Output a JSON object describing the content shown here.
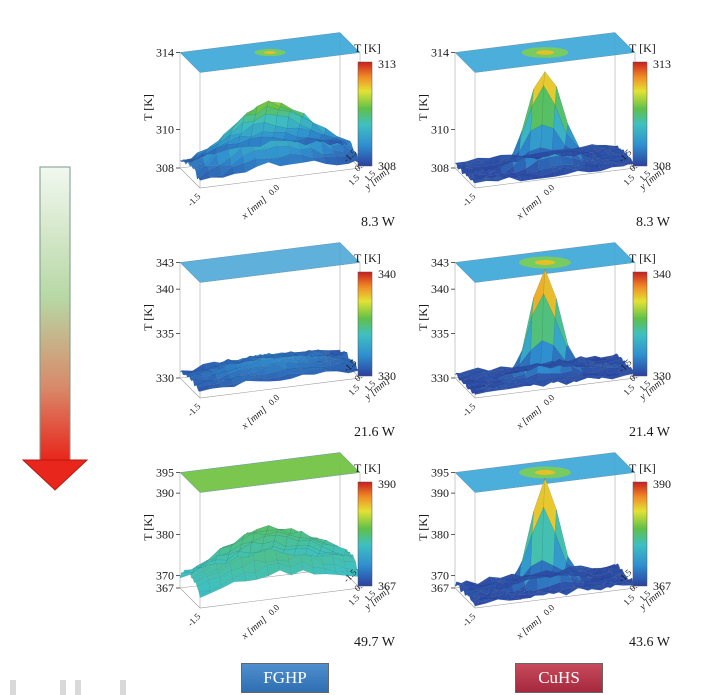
{
  "chart_data": [
    {
      "type": "surface",
      "id": "fghp-1",
      "zlabel": "T [K]",
      "xlabel": "x [mm]",
      "ylabel": "y [mm]",
      "zticks": [
        308,
        310,
        314
      ],
      "xy_ticks": [
        "-1.5",
        "0.0",
        "1.5"
      ],
      "colorbar": {
        "title": "T [K]",
        "min_label": "308",
        "max_label": "313"
      },
      "power": "8.3 W",
      "peak": 0.55,
      "spread": 0.9,
      "lid_color": "#39a6d6",
      "lid_hot": 0.6
    },
    {
      "type": "surface",
      "id": "cuhs-1",
      "zlabel": "T [K]",
      "xlabel": "x [mm]",
      "ylabel": "y [mm]",
      "zticks": [
        308,
        310,
        314
      ],
      "xy_ticks": [
        "-1.5",
        "0.0",
        "1.5"
      ],
      "colorbar": {
        "title": "T [K]",
        "min_label": "308",
        "max_label": "313"
      },
      "power": "8.3 W",
      "peak": 0.85,
      "spread": 0.35,
      "lid_color": "#39a6d6",
      "lid_hot": 0.9
    },
    {
      "type": "surface",
      "id": "fghp-2",
      "zlabel": "T [K]",
      "xlabel": "x [mm]",
      "ylabel": "y [mm]",
      "zticks": [
        330,
        335,
        340,
        343
      ],
      "xy_ticks": [
        "-1.5",
        "0.0",
        "1.5"
      ],
      "colorbar": {
        "title": "T [K]",
        "min_label": "330",
        "max_label": "340"
      },
      "power": "21.6 W",
      "peak": 0.15,
      "spread": 1.2,
      "lid_color": "#4ea8d8",
      "lid_hot": 0.0
    },
    {
      "type": "surface",
      "id": "cuhs-2",
      "zlabel": "T [K]",
      "xlabel": "x [mm]",
      "ylabel": "y [mm]",
      "zticks": [
        330,
        335,
        340,
        343
      ],
      "xy_ticks": [
        "-1.5",
        "0.0",
        "1.5"
      ],
      "colorbar": {
        "title": "T [K]",
        "min_label": "330",
        "max_label": "340"
      },
      "power": "21.4 W",
      "peak": 0.95,
      "spread": 0.3,
      "lid_color": "#39a6d6",
      "lid_hot": 1.0
    },
    {
      "type": "surface",
      "id": "fghp-3",
      "zlabel": "T [K]",
      "xlabel": "x [mm]",
      "ylabel": "y [mm]",
      "zticks": [
        367,
        370,
        380,
        390,
        395
      ],
      "xy_ticks": [
        "-1.5",
        "0.0",
        "1.5"
      ],
      "colorbar": {
        "title": "T [K]",
        "min_label": "367",
        "max_label": "390"
      },
      "power": "49.7 W",
      "peak": 0.5,
      "spread": 1.2,
      "lid_color": "#6cc03c",
      "lid_hot": 0.0
    },
    {
      "type": "surface",
      "id": "cuhs-3",
      "zlabel": "T [K]",
      "xlabel": "x [mm]",
      "ylabel": "y [mm]",
      "zticks": [
        367,
        370,
        380,
        390,
        395
      ],
      "xy_ticks": [
        "-1.5",
        "0.0",
        "1.5"
      ],
      "colorbar": {
        "title": "T [K]",
        "min_label": "367",
        "max_label": "390"
      },
      "power": "43.6 W",
      "peak": 0.95,
      "spread": 0.28,
      "lid_color": "#39a6d6",
      "lid_hot": 1.0
    }
  ],
  "labels": {
    "fghp": "FGHP",
    "cuhs": "CuHS"
  },
  "colors": {
    "arrow_top": "#eef6ee",
    "arrow_mid": "#b9d8a8",
    "arrow_bottom": "#e8261b"
  }
}
